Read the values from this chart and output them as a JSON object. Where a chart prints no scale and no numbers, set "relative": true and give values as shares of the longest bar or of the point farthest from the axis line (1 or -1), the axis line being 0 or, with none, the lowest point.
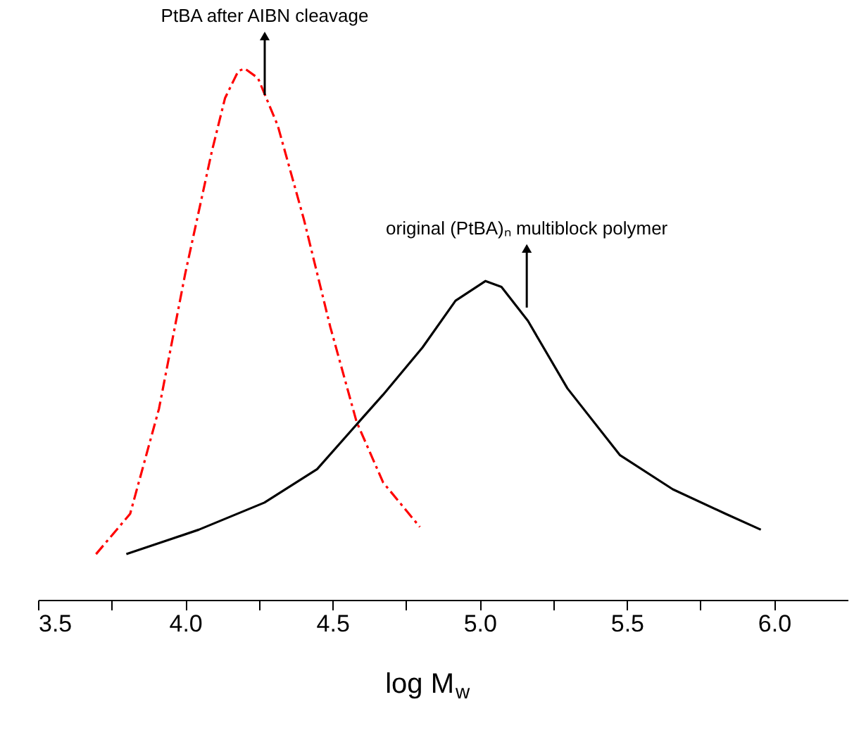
{
  "chart_data": {
    "type": "line",
    "relative": true,
    "xlabel": "log M$_{w}$",
    "xlim": [
      3.5,
      6.25
    ],
    "xticks": [
      3.5,
      {
        "value": 3.75,
        "label": null
      },
      {
        "value": 4,
        "label": "4.0"
      },
      {
        "value": 4.25,
        "label": null
      },
      4.5,
      {
        "value": 4.75,
        "label": null
      },
      {
        "value": 5,
        "label": "5.0"
      },
      {
        "value": 5.25,
        "label": null
      },
      5.5,
      {
        "value": 5.75,
        "label": null
      },
      {
        "value": 6,
        "label": "6.0"
      }
    ],
    "tick_labels": "x",
    "grid": false,
    "series": [
      {
        "color": "#ff0000",
        "line_style": "dashed",
        "x": [
          3.697,
          3.813,
          3.911,
          4.0,
          4.09,
          4.135,
          4.18,
          4.202,
          4.247,
          4.314,
          4.403,
          4.493,
          4.582,
          4.672,
          4.797
        ],
        "values": [
          0.086,
          0.162,
          0.36,
          0.614,
          0.843,
          0.944,
          0.995,
          1.0,
          0.982,
          0.893,
          0.716,
          0.513,
          0.335,
          0.221,
          0.137
        ]
      },
      {
        "color": "#000000",
        "line_style": "solid",
        "x": [
          3.8,
          4.046,
          4.269,
          4.448,
          4.582,
          4.672,
          4.806,
          4.918,
          5.02,
          5.074,
          5.164,
          5.298,
          5.477,
          5.656,
          5.835,
          5.955
        ],
        "values": [
          0.086,
          0.132,
          0.183,
          0.246,
          0.33,
          0.386,
          0.475,
          0.563,
          0.6,
          0.589,
          0.525,
          0.398,
          0.272,
          0.208,
          0.162,
          0.132
        ]
      }
    ],
    "annotations": [
      {
        "text": "PtBA after AIBN cleavage",
        "x": 4.27,
        "y": 0.95
      },
      {
        "text": "original (PtBA)ₙ multiblock polymer",
        "x": 5.16,
        "y": 0.55
      }
    ]
  }
}
